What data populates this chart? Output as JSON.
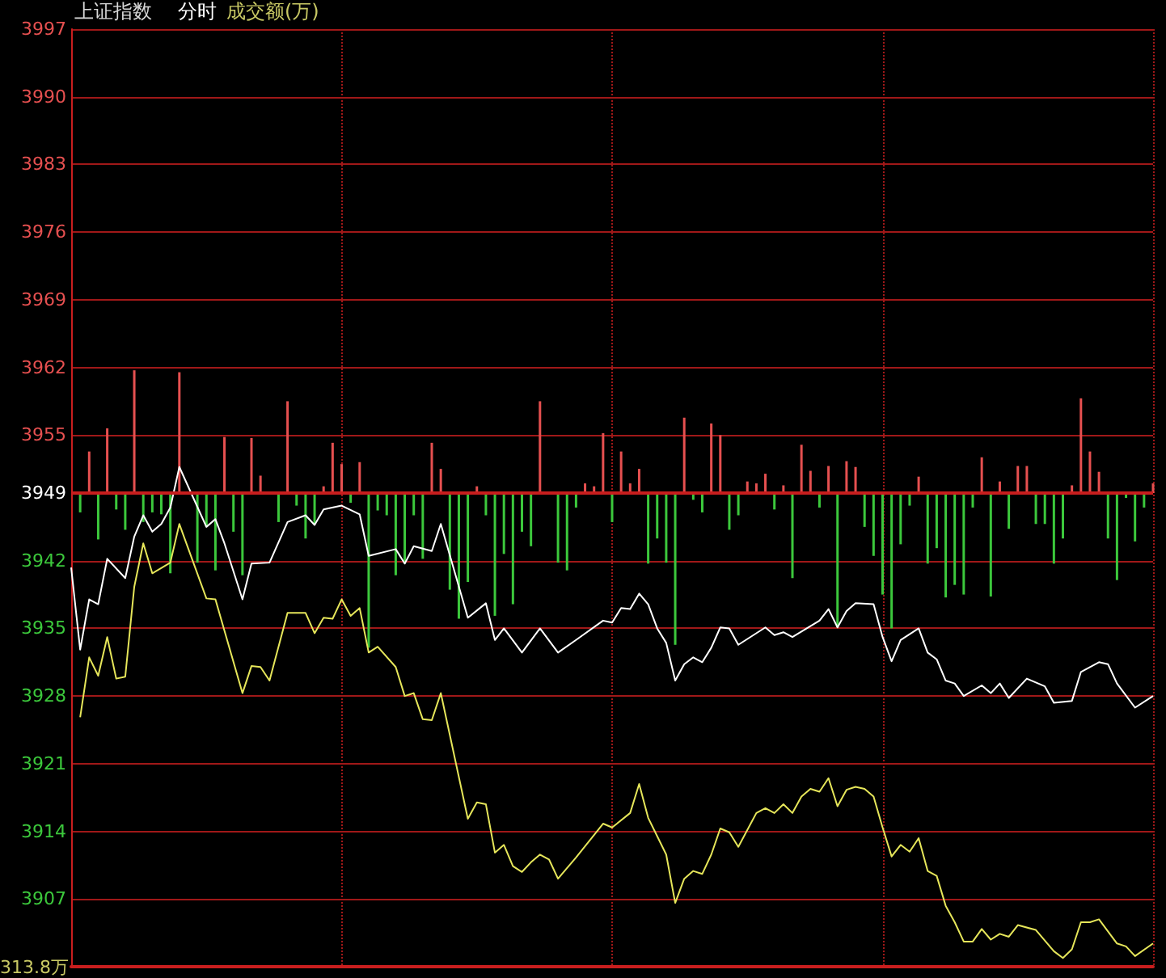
{
  "chart_data": {
    "type": "line",
    "title": "上证指数",
    "subtitle": "分时",
    "annotations": [
      "成交额(万)",
      "313.8万"
    ],
    "categories": [
      null,
      null,
      null,
      null,
      null,
      null,
      null,
      null,
      null,
      null,
      null,
      null,
      null,
      null,
      null,
      null,
      null,
      null,
      null,
      null,
      null,
      null,
      null,
      null,
      null,
      null,
      null,
      null,
      null,
      null,
      null,
      null,
      null,
      null,
      null,
      null,
      null,
      null,
      null,
      null,
      null,
      null,
      null,
      null,
      null,
      null,
      null,
      null,
      null,
      null,
      null,
      null,
      null,
      null,
      null,
      null,
      null,
      null,
      null,
      null,
      null,
      null,
      null,
      null,
      null,
      null,
      null,
      null,
      null,
      null,
      null,
      null,
      null,
      null,
      null,
      null,
      null,
      null,
      null,
      null,
      null,
      null,
      null,
      null,
      null,
      null,
      null,
      null,
      null,
      null,
      null,
      null,
      null,
      null,
      null,
      null,
      null,
      null,
      null,
      null,
      null,
      null,
      null,
      null,
      null,
      null,
      null,
      null,
      null,
      null,
      null,
      null,
      null,
      null,
      null,
      null,
      null,
      null,
      null,
      null,
      null
    ],
    "ylim": [
      3900,
      3997
    ],
    "yticks": [
      3907,
      3914,
      3921,
      3928,
      3935,
      3942,
      3949,
      3955,
      3962,
      3969,
      3976,
      3983,
      3990,
      3997
    ],
    "tick_labels": "y",
    "grid": true,
    "line_style": "solid",
    "ref_lines": [
      {
        "axis": "y",
        "value": 3949,
        "color": "#c81e1e"
      }
    ],
    "series": [
      {
        "color": "#ffffff",
        "values": [
          3941.3,
          3932.8,
          3938.0,
          3937.5,
          3942.2,
          null,
          3940.2,
          3944.5,
          3946.7,
          3945.0,
          3945.8,
          3947.5,
          3951.7,
          null,
          null,
          3945.5,
          3946.3,
          3943.8,
          null,
          3938.0,
          3941.7,
          null,
          3941.8,
          null,
          3946.0,
          null,
          3946.7,
          3945.7,
          3947.3,
          null,
          3947.7,
          null,
          3946.8,
          3942.5,
          null,
          null,
          3943.2,
          3941.7,
          3943.5,
          null,
          3943.0,
          3945.8,
          null,
          null,
          3936.1,
          null,
          3937.6,
          3933.8,
          3935.0,
          null,
          3932.5,
          null,
          3935.0,
          null,
          3932.5,
          null,
          3933.8,
          null,
          null,
          3935.8,
          3935.6,
          3937.1,
          3937.0,
          3938.6,
          3937.5,
          3935.0,
          3933.5,
          3929.6,
          3931.3,
          3932.0,
          3931.5,
          3933.0,
          3935.1,
          3935.0,
          3933.3,
          null,
          null,
          3935.1,
          3934.3,
          3934.6,
          3934.1,
          null,
          null,
          3935.8,
          3937.0,
          3935.1,
          3936.8,
          3937.6,
          null,
          3937.5,
          3934.1,
          3931.6,
          3933.8,
          null,
          3935.0,
          3932.5,
          3931.8,
          3929.6,
          3929.3,
          3928.0,
          null,
          3929.1,
          3928.3,
          3929.3,
          3927.8,
          null,
          3929.8,
          null,
          3929.0,
          3927.3,
          null,
          3927.5,
          3930.5,
          null,
          3931.5,
          3931.3,
          3929.3,
          null,
          3926.8,
          null,
          3928.0
        ]
      },
      {
        "color": "#e6e65a",
        "values": [
          null,
          3925.8,
          3932.0,
          3930.1,
          3934.1,
          3929.8,
          3930.0,
          3939.3,
          3943.8,
          3940.7,
          null,
          3941.8,
          3945.8,
          null,
          null,
          3938.1,
          3938.0,
          null,
          null,
          3928.3,
          3931.1,
          3931.0,
          3929.6,
          null,
          3936.6,
          null,
          3936.6,
          3934.5,
          3936.1,
          3936.0,
          3938.0,
          3936.3,
          3937.1,
          3932.5,
          3933.1,
          null,
          3931.0,
          3928.0,
          3928.3,
          3925.6,
          3925.5,
          3928.3,
          null,
          null,
          3915.3,
          3917.0,
          3916.8,
          3911.8,
          3912.6,
          3910.4,
          3909.8,
          3910.8,
          3911.6,
          3911.1,
          3909.1,
          null,
          3911.3,
          null,
          null,
          3914.8,
          3914.4,
          null,
          3915.9,
          3918.9,
          3915.4,
          null,
          3911.6,
          3906.6,
          3909.1,
          3909.9,
          3909.6,
          3911.6,
          3914.3,
          3913.9,
          3912.4,
          null,
          3915.9,
          3916.4,
          3915.9,
          3916.8,
          3915.9,
          3917.6,
          3918.4,
          3918.1,
          3919.5,
          3916.6,
          3918.3,
          3918.6,
          3918.4,
          3917.6,
          3914.4,
          3911.4,
          3912.6,
          3911.9,
          3913.3,
          3909.9,
          3909.4,
          3906.3,
          3904.6,
          3902.6,
          3902.6,
          3903.9,
          3902.8,
          3903.4,
          3903.1,
          3904.3,
          null,
          3903.8,
          null,
          3901.6,
          3900.9,
          3901.8,
          3904.6,
          3904.6,
          3904.9,
          null,
          3902.4,
          3902.1,
          3901.1,
          null,
          3902.4
        ]
      },
      {
        "type": "bar",
        "color": "#e65050",
        "base": [
          null,
          null,
          3949,
          null,
          3949,
          null,
          null,
          3949,
          null,
          null,
          null,
          null,
          3949,
          null,
          null,
          null,
          null,
          3949,
          null,
          null,
          3949,
          3949,
          null,
          null,
          3949,
          null,
          null,
          null,
          3949,
          3949,
          3949,
          null,
          3949,
          null,
          null,
          null,
          null,
          null,
          null,
          null,
          3949,
          3949,
          null,
          null,
          null,
          3949,
          null,
          null,
          null,
          null,
          null,
          null,
          3949,
          null,
          null,
          null,
          null,
          3949,
          3949,
          3949,
          null,
          3949,
          3949,
          3949,
          null,
          null,
          null,
          null,
          3949,
          null,
          null,
          3949,
          3949,
          null,
          null,
          3949,
          3949,
          3949,
          null,
          3949,
          null,
          3949,
          3949,
          null,
          3949,
          null,
          3949,
          3949,
          null,
          null,
          null,
          null,
          null,
          null,
          3949,
          null,
          null,
          null,
          null,
          null,
          null,
          3949,
          null,
          3949,
          null,
          3949,
          3949,
          null,
          null,
          null,
          null,
          3949,
          3949,
          3949,
          3949,
          null,
          null,
          null,
          null,
          null,
          3949
        ],
        "values": [
          null,
          null,
          4.3,
          null,
          6.7,
          null,
          null,
          12.7,
          null,
          null,
          null,
          null,
          12.5,
          null,
          null,
          null,
          null,
          5.8,
          null,
          null,
          5.7,
          1.8,
          null,
          null,
          9.5,
          null,
          null,
          null,
          0.7,
          5.2,
          3.0,
          null,
          3.2,
          null,
          null,
          null,
          null,
          null,
          null,
          null,
          5.2,
          2.5,
          null,
          null,
          null,
          0.7,
          null,
          null,
          null,
          null,
          null,
          null,
          9.5,
          null,
          null,
          null,
          null,
          1.0,
          0.7,
          6.2,
          null,
          4.3,
          1.0,
          2.5,
          null,
          null,
          null,
          null,
          7.8,
          null,
          null,
          7.2,
          6.0,
          null,
          null,
          1.2,
          1.0,
          2.0,
          null,
          0.8,
          null,
          5.0,
          2.3,
          null,
          2.8,
          null,
          3.3,
          2.7,
          null,
          null,
          null,
          null,
          null,
          null,
          1.7,
          null,
          null,
          null,
          null,
          null,
          null,
          3.7,
          null,
          1.2,
          null,
          2.8,
          2.8,
          null,
          null,
          null,
          null,
          0.8,
          9.8,
          4.3,
          2.2,
          null,
          null,
          null,
          null,
          null,
          1.0
        ]
      },
      {
        "type": "bar",
        "color": "#3cc83c",
        "base": [
          null,
          3949,
          null,
          3949,
          null,
          3949,
          3949,
          null,
          3949,
          3949,
          3949,
          3949,
          null,
          null,
          3949,
          3949,
          3949,
          null,
          3949,
          3949,
          null,
          null,
          null,
          3949,
          null,
          3949,
          3949,
          3949,
          null,
          null,
          null,
          3949,
          null,
          3949,
          3949,
          3949,
          3949,
          3949,
          3949,
          3949,
          null,
          null,
          3949,
          3949,
          3949,
          null,
          3949,
          3949,
          3949,
          3949,
          3949,
          3949,
          null,
          null,
          3949,
          3949,
          3949,
          null,
          null,
          null,
          3949,
          null,
          null,
          null,
          3949,
          3949,
          3949,
          3949,
          null,
          3949,
          3949,
          null,
          null,
          3949,
          3949,
          null,
          null,
          null,
          3949,
          null,
          3949,
          null,
          null,
          3949,
          null,
          3949,
          null,
          null,
          3949,
          3949,
          3949,
          3949,
          3949,
          3949,
          null,
          3949,
          3949,
          3949,
          3949,
          3949,
          3949,
          null,
          3949,
          null,
          3949,
          null,
          null,
          3949,
          3949,
          3949,
          3949,
          null,
          null,
          null,
          null,
          3949,
          3949,
          3949,
          3949,
          3949,
          null
        ],
        "values": [
          null,
          -2.0,
          null,
          -4.8,
          null,
          -1.7,
          -3.8,
          null,
          -3.0,
          -2.0,
          -2.2,
          -8.3,
          null,
          null,
          -7.2,
          -3.5,
          -8.0,
          null,
          -4.0,
          -8.5,
          null,
          null,
          null,
          -3.0,
          null,
          -1.3,
          -4.7,
          -3.2,
          null,
          null,
          null,
          -1.0,
          null,
          -16.0,
          -1.8,
          -2.3,
          -8.5,
          -7.3,
          -2.3,
          -6.8,
          null,
          null,
          -10.0,
          -13.0,
          -9.2,
          null,
          -2.3,
          -12.7,
          -6.3,
          -11.5,
          -4.0,
          -5.5,
          null,
          null,
          -7.2,
          -8.0,
          -1.5,
          null,
          null,
          null,
          -3.0,
          null,
          null,
          null,
          -7.3,
          -4.7,
          -7.2,
          -15.7,
          null,
          -0.7,
          -2.0,
          null,
          null,
          -3.8,
          -2.3,
          null,
          null,
          null,
          -1.7,
          null,
          -8.8,
          null,
          null,
          -1.5,
          null,
          -13.9,
          null,
          null,
          -3.5,
          -6.5,
          -10.5,
          -14.0,
          -5.3,
          -1.3,
          null,
          -7.3,
          -5.7,
          -10.8,
          -9.5,
          -10.5,
          -1.5,
          null,
          -10.7,
          null,
          -3.7,
          null,
          null,
          -3.2,
          -3.2,
          -7.3,
          -4.7,
          null,
          null,
          null,
          null,
          -4.7,
          -9.0,
          -0.5,
          -5.0,
          -1.5,
          null
        ]
      }
    ]
  }
}
